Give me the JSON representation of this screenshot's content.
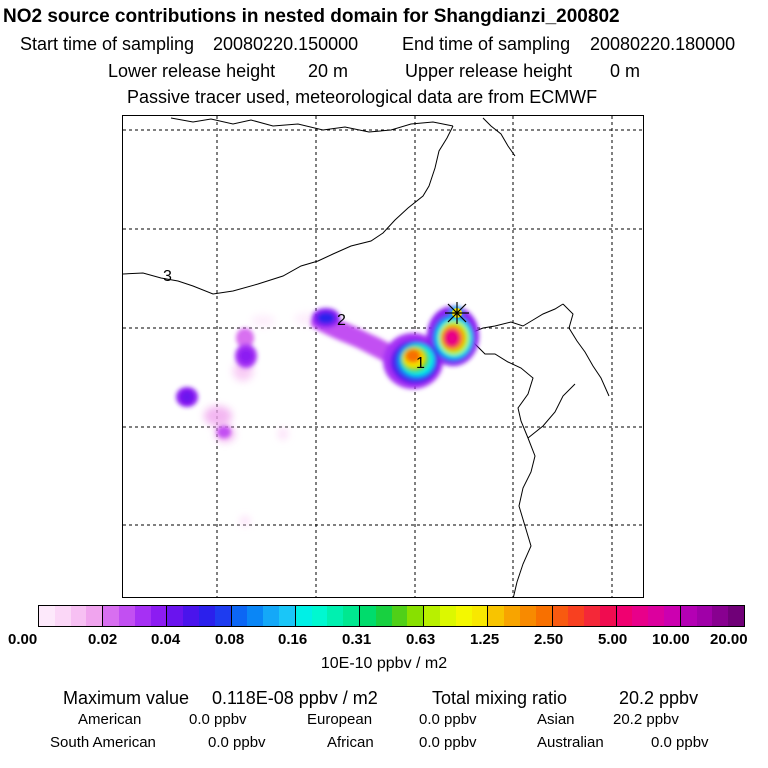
{
  "header": {
    "title": "NO2 source contributions in nested domain for Shangdianzi_200802",
    "start_label": "Start time of sampling",
    "start_value": "20080220.150000",
    "end_label": "End time of sampling",
    "end_value": "20080220.180000",
    "lower_label": "Lower release height",
    "lower_value": "20 m",
    "upper_label": "Upper release height",
    "upper_value": "0 m",
    "note": "Passive tracer used, meteorological data are from ECMWF"
  },
  "map": {
    "labels": [
      "1",
      "2",
      "3"
    ],
    "marker": "receptor-star"
  },
  "colorbar": {
    "ticks": [
      "0.00",
      "0.02",
      "0.04",
      "0.08",
      "0.16",
      "0.31",
      "0.63",
      "1.25",
      "2.50",
      "5.00",
      "10.00",
      "20.00"
    ],
    "unit": "10E-10 ppbv / m2",
    "colors": [
      "#fde9fb",
      "#fbd7f7",
      "#f7c0f3",
      "#f0a4ee",
      "#d86ff0",
      "#c24ff2",
      "#a630f4",
      "#8c1cf2",
      "#6a14ee",
      "#4a14ec",
      "#2b20ec",
      "#1e3cf0",
      "#0c66f4",
      "#0a86f6",
      "#14a8f8",
      "#1ac6f8",
      "#00f0e6",
      "#00f8d0",
      "#00f0b0",
      "#00e890",
      "#00dc6c",
      "#18d040",
      "#50d018",
      "#88e000",
      "#b8f000",
      "#dcf800",
      "#f4f800",
      "#f8e800",
      "#f8c400",
      "#f8a400",
      "#f88a00",
      "#f87000",
      "#f85a10",
      "#f84020",
      "#f42838",
      "#f00c50",
      "#f00070",
      "#e8008a",
      "#dc009e",
      "#cc00b0",
      "#b400b4",
      "#a000a8",
      "#880090",
      "#700078"
    ]
  },
  "stats": {
    "max_label": "Maximum value",
    "max_value": "0.118E-08 ppbv / m2",
    "total_label": "Total mixing ratio",
    "total_value": "20.2 ppbv",
    "contributions": [
      {
        "region": "American",
        "value": "0.0 ppbv"
      },
      {
        "region": "European",
        "value": "0.0 ppbv"
      },
      {
        "region": "Asian",
        "value": "20.2 ppbv"
      },
      {
        "region": "South American",
        "value": "0.0 ppbv"
      },
      {
        "region": "African",
        "value": "0.0 ppbv"
      },
      {
        "region": "Australian",
        "value": "0.0 ppbv"
      }
    ]
  }
}
